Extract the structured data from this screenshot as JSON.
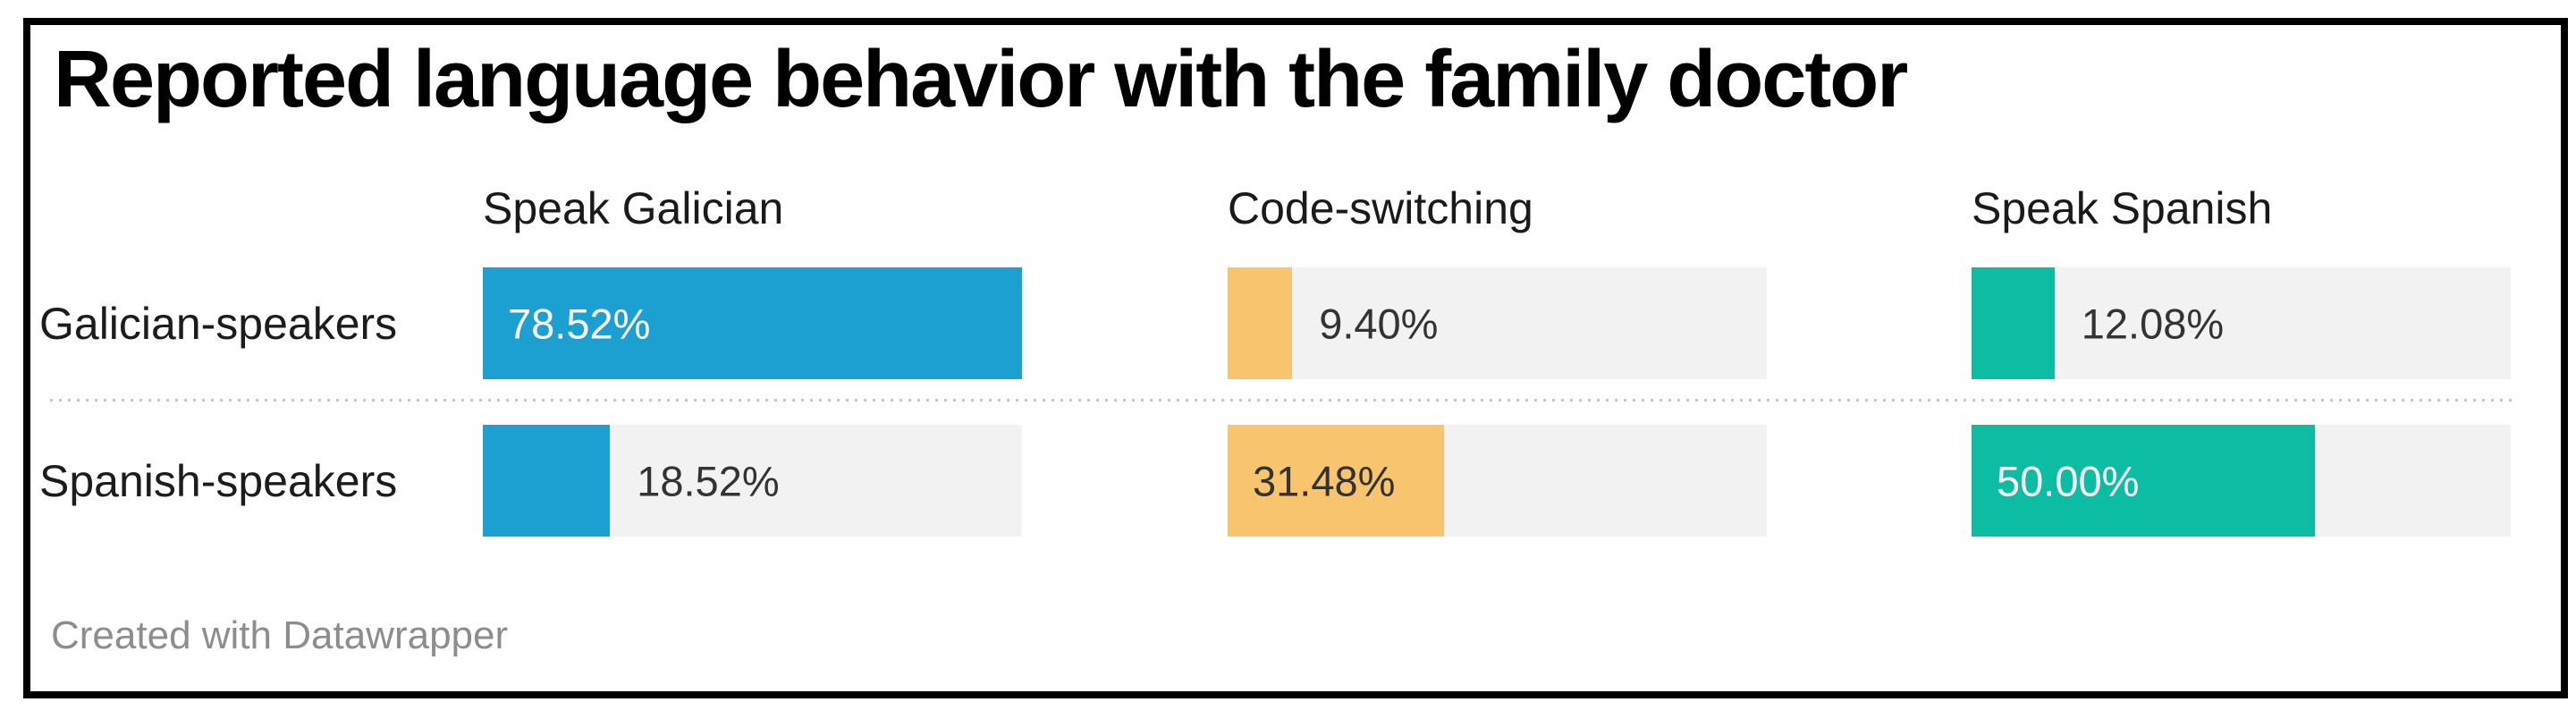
{
  "title": "Reported language behavior with the family doctor",
  "footer": "Created with Datawrapper",
  "colors": {
    "blue": "#1ca0d2",
    "orange": "#f9c46e",
    "teal": "#0cbda3",
    "track": "#f2f2f2",
    "title_text": "#000000",
    "body_text": "#1c1c1c",
    "value_text_dark": "#333333",
    "value_text_light": "#ffffff",
    "footer_text": "#8d8d8d",
    "frame_border": "#000000",
    "separator_dots": "#c5c5c5"
  },
  "chart_data": {
    "type": "bar",
    "title": "Reported language behavior with the family doctor",
    "xlabel": "",
    "ylabel": "",
    "unit": "%",
    "scale_max": 78.52,
    "grid": false,
    "legend_position": "column-headers",
    "categories": [
      "Galician-speakers",
      "Spanish-speakers"
    ],
    "series": [
      {
        "name": "Speak Galician",
        "color": "#1ca0d2",
        "label_color_inside": "#ffffff",
        "values": [
          78.52,
          18.52
        ],
        "labels": [
          "78.52%",
          "18.52%"
        ],
        "inside": [
          true,
          false
        ]
      },
      {
        "name": "Code-switching",
        "color": "#f9c46e",
        "label_color_inside": "#333333",
        "values": [
          9.4,
          31.48
        ],
        "labels": [
          "9.40%",
          "31.48%"
        ],
        "inside": [
          false,
          true
        ]
      },
      {
        "name": "Speak Spanish",
        "color": "#0cbda3",
        "label_color_inside": "#ffffff",
        "values": [
          12.08,
          50.0
        ],
        "labels": [
          "12.08%",
          "50.00%"
        ],
        "inside": [
          false,
          true
        ]
      }
    ]
  }
}
